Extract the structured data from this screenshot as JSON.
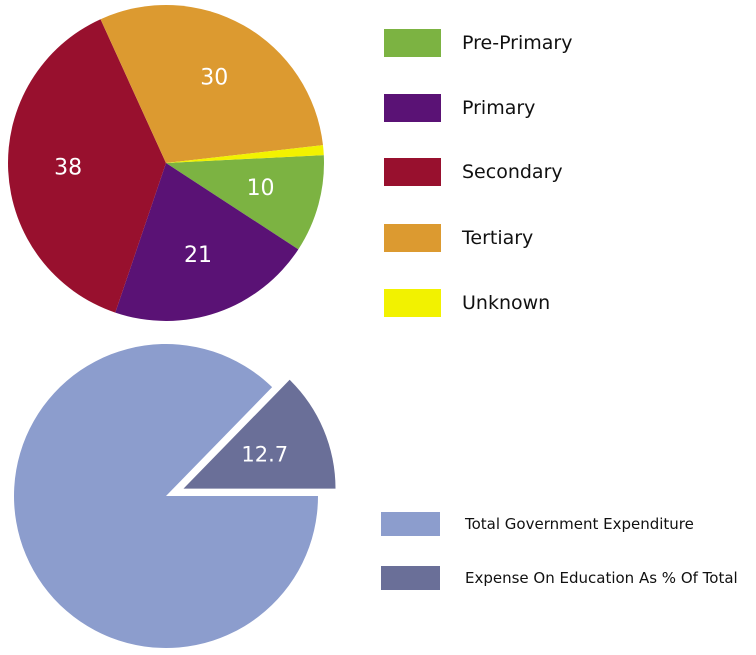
{
  "colors": {
    "pre_primary": "#7cb342",
    "primary": "#5a1275",
    "secondary": "#98102e",
    "tertiary": "#dc9a30",
    "unknown": "#f2f200",
    "total_expenditure": "#8c9dcd",
    "education_expense": "#6a6f98",
    "slice_label": "#ffffff"
  },
  "chart_data": [
    {
      "type": "pie",
      "categories": [
        "Pre-Primary",
        "Primary",
        "Secondary",
        "Tertiary",
        "Unknown"
      ],
      "values": [
        10,
        21,
        38,
        30,
        1
      ],
      "data_labels": [
        "10",
        "21",
        "38",
        "30",
        ""
      ],
      "legend": [
        "Pre-Primary",
        "Primary",
        "Secondary",
        "Tertiary",
        "Unknown"
      ],
      "legend_position": "right",
      "title": ""
    },
    {
      "type": "pie",
      "categories": [
        "Total Government Expenditure",
        "Expense On Education As % Of Total"
      ],
      "values": [
        87.3,
        12.7
      ],
      "data_labels": [
        "",
        "12.7"
      ],
      "exploded": [
        "Expense On Education As % Of Total"
      ],
      "legend": [
        "Total Government Expenditure",
        "Expense On Education As % Of Total"
      ],
      "legend_position": "right",
      "title": ""
    }
  ]
}
